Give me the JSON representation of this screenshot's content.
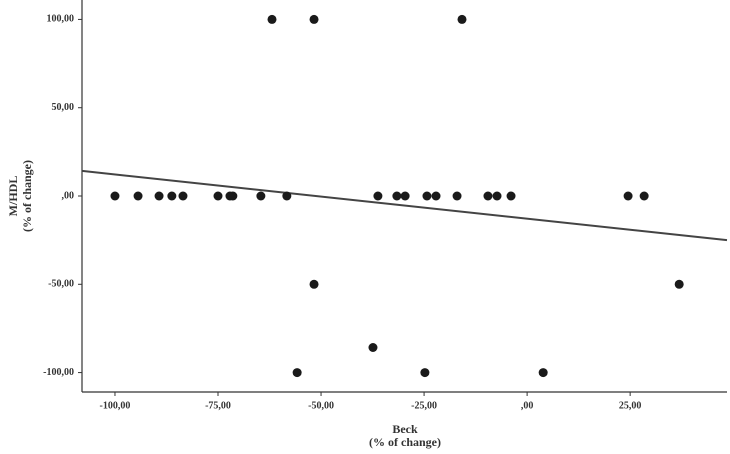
{
  "chart_data": {
    "type": "scatter",
    "xlabel": [
      "Beck",
      "(% of change)"
    ],
    "ylabel": [
      "M/HDL",
      "(% of change)"
    ],
    "color": "#1a1a1a",
    "xlim": [
      -108,
      48.5
    ],
    "ylim": [
      -111,
      111
    ],
    "xticks": [
      {
        "value": -100,
        "label": "-100,00"
      },
      {
        "value": -75,
        "label": "-75,00"
      },
      {
        "value": -50,
        "label": "-50,00"
      },
      {
        "value": -25,
        "label": "-25,00"
      },
      {
        "value": 0,
        "label": ",00"
      },
      {
        "value": 25,
        "label": "25,00"
      }
    ],
    "yticks": [
      {
        "value": 100,
        "label": "100,00"
      },
      {
        "value": 50,
        "label": "50,00"
      },
      {
        "value": 0,
        "label": ",00"
      },
      {
        "value": -50,
        "label": "-50,00"
      },
      {
        "value": -100,
        "label": "-100,00"
      }
    ],
    "x": [
      -100,
      -94.4,
      -89.3,
      -86.2,
      -83.5,
      -75,
      -72.1,
      -71.4,
      -64.6,
      -58.3,
      -36.2,
      -31.6,
      -29.6,
      -24.3,
      -22.1,
      -17,
      -9.5,
      -7.3,
      -3.9,
      24.5,
      28.4,
      -61.9,
      -51.7,
      -15.8,
      -51.7,
      36.9,
      -37.4,
      -55.8,
      -24.8,
      3.9
    ],
    "y": [
      0,
      0,
      0,
      0,
      0,
      0,
      0,
      0,
      0,
      0,
      0,
      0,
      0,
      0,
      0,
      0,
      0,
      0,
      0,
      0,
      0,
      100,
      100,
      100,
      -50,
      -50,
      -85.8,
      -100,
      -100,
      -100
    ],
    "trendline": {
      "x": [
        -108,
        48.5
      ],
      "y": [
        14.2,
        -25
      ]
    }
  }
}
